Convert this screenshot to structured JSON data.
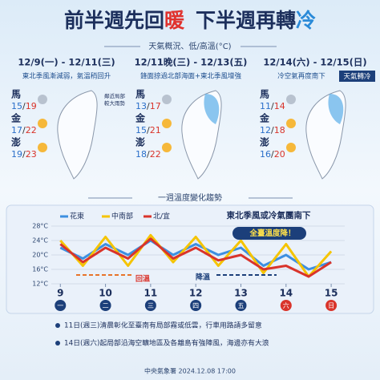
{
  "header": {
    "title": [
      "前半週先回",
      "暖",
      "下半週再轉",
      "冷"
    ],
    "subtitle": "天氣概況、低/高溫(°C)"
  },
  "panels": [
    {
      "date": "12/9(一) - 12/11(三)",
      "desc": "東北季風漸減弱，氣溫稍回升",
      "note": [
        "鄰近局部",
        "較大雨勢"
      ],
      "cities": [
        {
          "name": "馬",
          "low": 15,
          "high": 19
        },
        {
          "name": "金",
          "low": 17,
          "high": 22
        },
        {
          "name": "澎",
          "low": 19,
          "high": 23
        }
      ]
    },
    {
      "date": "12/11晚(三) - 12/13(五)",
      "desc": "鋒面掠過北部海面+東北季風增強",
      "cities": [
        {
          "name": "馬",
          "low": 13,
          "high": 17
        },
        {
          "name": "金",
          "low": 15,
          "high": 21
        },
        {
          "name": "澎",
          "low": 18,
          "high": 22
        }
      ]
    },
    {
      "date": "12/14(六) - 12/15(日)",
      "desc": "冷空氣再度南下",
      "badge": "天氣轉冷",
      "cities": [
        {
          "name": "馬",
          "low": 11,
          "high": 14
        },
        {
          "name": "金",
          "low": 12,
          "high": 18
        },
        {
          "name": "澎",
          "low": 16,
          "high": 20
        }
      ]
    }
  ],
  "chart_data": {
    "type": "line",
    "title": "一週溫度變化趨勢",
    "annotations": [
      "東北季風或冷氣團南下",
      "全臺溫度降！",
      "回溫",
      "降溫"
    ],
    "x": [
      9,
      9.5,
      10,
      10.5,
      11,
      11.5,
      12,
      12.5,
      13,
      13.5,
      14,
      14.5,
      15
    ],
    "xlim": [
      8.8,
      15.3
    ],
    "xticks": [
      9,
      10,
      11,
      12,
      13,
      14,
      15
    ],
    "weekdays": [
      "一",
      "二",
      "三",
      "四",
      "五",
      "六",
      "日"
    ],
    "ylim": [
      12,
      28
    ],
    "yticks": [
      {
        "value": 12,
        "label": "12°C"
      },
      {
        "value": 16,
        "label": "16°C"
      },
      {
        "value": 20,
        "label": "20°C"
      },
      {
        "value": 24,
        "label": "24°C"
      },
      {
        "value": 28,
        "label": "28°C"
      }
    ],
    "grid": true,
    "series": [
      {
        "name": "花東",
        "color": "#3d8fe0",
        "values": [
          22,
          19,
          23,
          20,
          24,
          20,
          23,
          20,
          22,
          17,
          20,
          16,
          18
        ]
      },
      {
        "name": "中南部",
        "color": "#f5c400",
        "values": [
          24,
          17,
          25,
          17,
          25.5,
          18,
          25,
          17,
          24,
          15,
          23,
          14,
          21
        ]
      },
      {
        "name": "北/宜",
        "color": "#d9342b",
        "values": [
          23,
          18,
          22,
          19,
          24.5,
          19,
          22,
          18.5,
          20,
          16,
          17,
          14,
          18
        ]
      }
    ]
  },
  "notes": [
    "11日(週三)清晨彰化至臺南有局部霧或低雲，行車用路請多留意",
    "14日(週六)起局部沿海空曠地區及各離島有強陣風，海邊亦有大浪"
  ],
  "footer": "中央氣象署 2024.12.08 17:00"
}
